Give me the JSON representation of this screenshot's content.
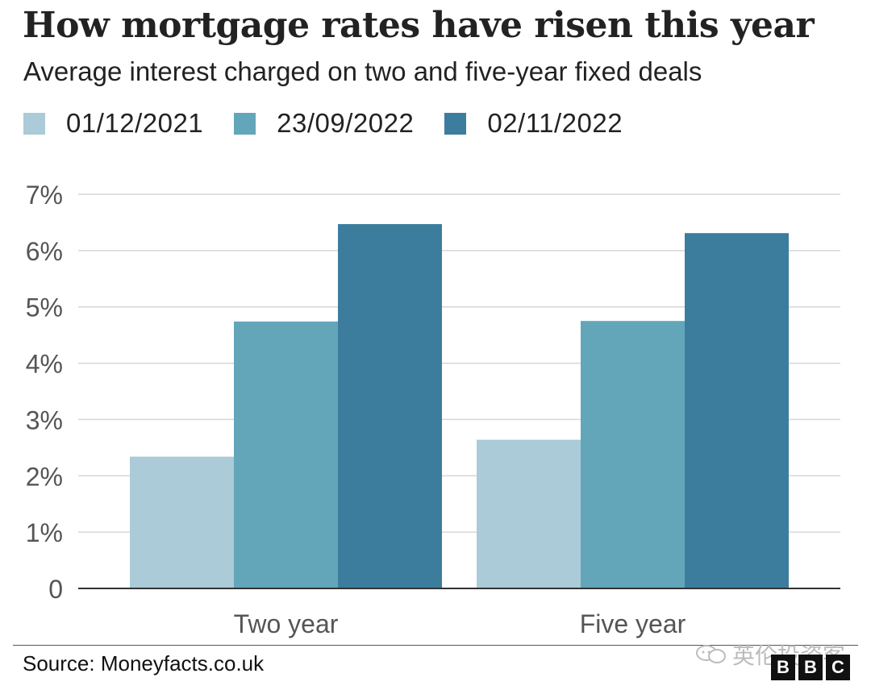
{
  "title": "How mortgage rates have risen this year",
  "subtitle": "Average interest charged on two and five-year fixed deals",
  "source": "Source: Moneyfacts.co.uk",
  "watermark": "英伦投资客",
  "logo_letters": [
    "B",
    "B",
    "C"
  ],
  "colors": {
    "series_1": "#aacbd7",
    "series_2": "#63a6ba",
    "series_3": "#3c7d9e",
    "gridline": "#d6d6d6",
    "axis": "#333333",
    "tick_text": "#555555"
  },
  "chart_data": {
    "type": "bar",
    "title": "How mortgage rates have risen this year",
    "subtitle": "Average interest charged on two and five-year fixed deals",
    "categories": [
      "Two year",
      "Five year"
    ],
    "series": [
      {
        "name": "01/12/2021",
        "values": [
          2.34,
          2.64
        ]
      },
      {
        "name": "23/09/2022",
        "values": [
          4.74,
          4.75
        ]
      },
      {
        "name": "02/11/2022",
        "values": [
          6.47,
          6.31
        ]
      }
    ],
    "ylim": [
      0,
      7
    ],
    "yticks": [
      0,
      1,
      2,
      3,
      4,
      5,
      6,
      7
    ],
    "ytick_labels": [
      "0",
      "1%",
      "2%",
      "3%",
      "4%",
      "5%",
      "6%",
      "7%"
    ],
    "xlabel": "",
    "ylabel": "",
    "grid": true,
    "legend_position": "top-left"
  }
}
